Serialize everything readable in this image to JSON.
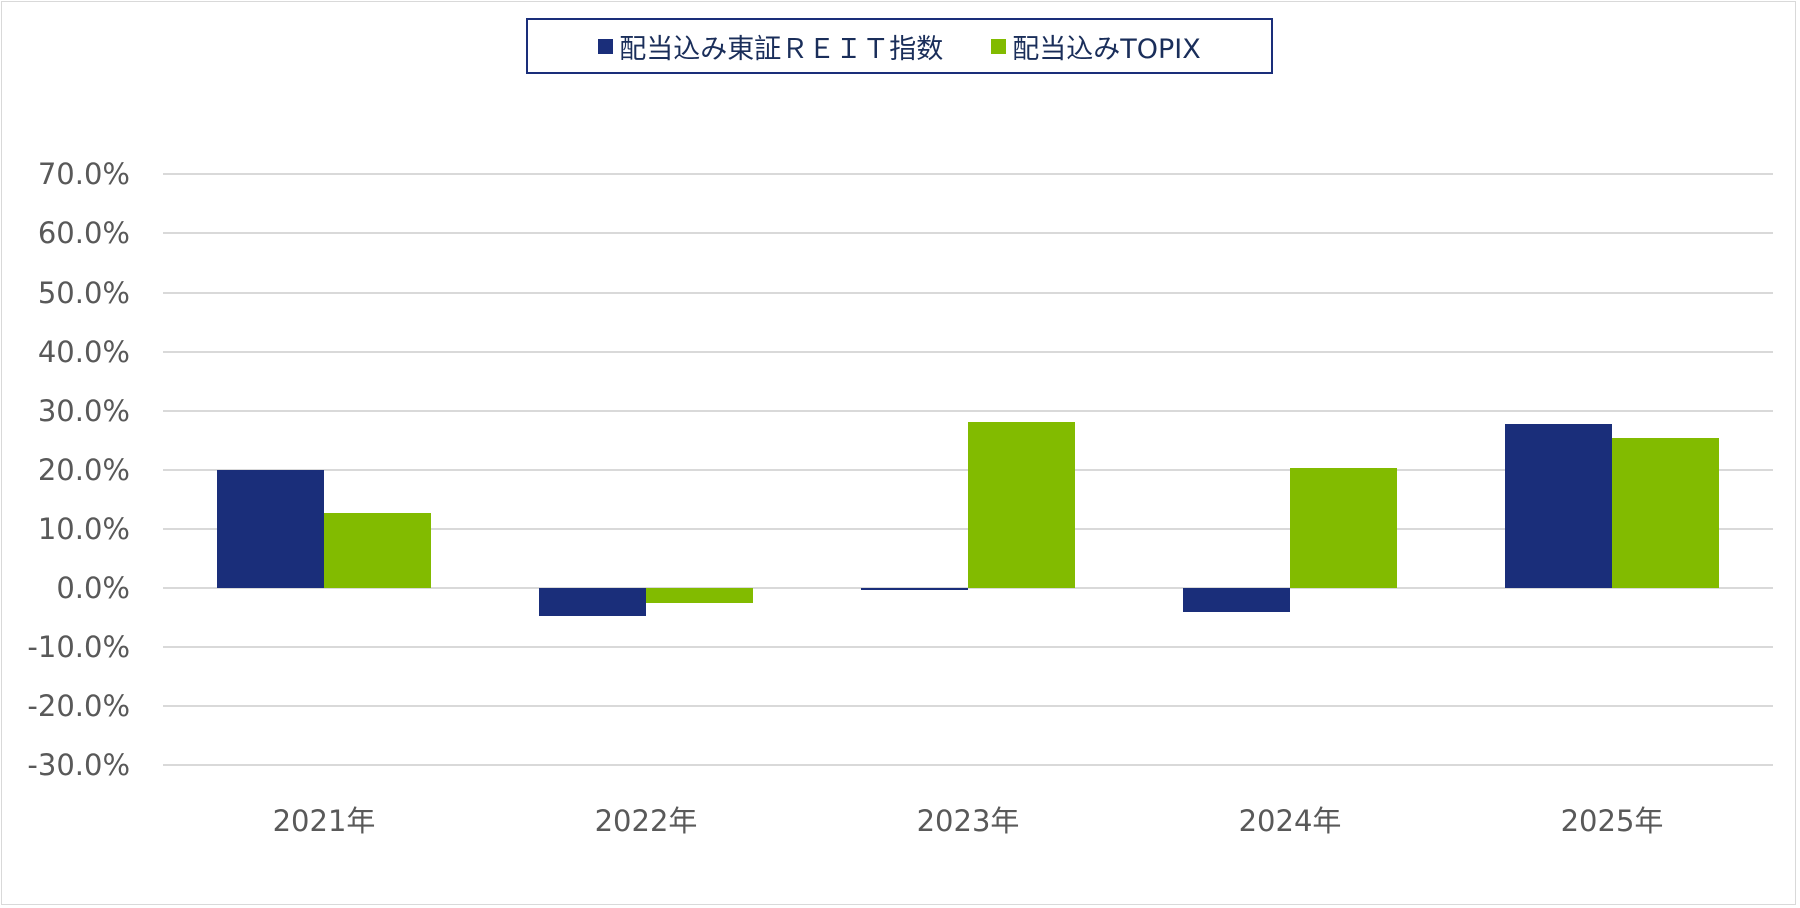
{
  "chart_data": {
    "type": "bar",
    "title": "",
    "xlabel": "",
    "ylabel": "",
    "categories": [
      "2021年",
      "2022年",
      "2023年",
      "2024年",
      "2025年"
    ],
    "series": [
      {
        "name": "配当込み東証ＲＥＩＴ指数",
        "color": "#1a2e7a",
        "values": [
          20.0,
          -4.7,
          -0.3,
          -4.1,
          27.7
        ]
      },
      {
        "name": "配当込みTOPIX",
        "color": "#82bb00",
        "values": [
          12.7,
          -2.5,
          28.1,
          20.3,
          25.4
        ]
      }
    ],
    "ylim": [
      -30,
      70
    ],
    "yticks": [
      "70.0%",
      "60.0%",
      "50.0%",
      "40.0%",
      "30.0%",
      "20.0%",
      "10.0%",
      "0.0%",
      "-10.0%",
      "-20.0%",
      "-30.0%"
    ],
    "ytick_values": [
      70,
      60,
      50,
      40,
      30,
      20,
      10,
      0,
      -10,
      -20,
      -30
    ],
    "grid": true,
    "legend_position": "top"
  },
  "legend": {
    "items": [
      {
        "label": "配当込み東証ＲＥＩＴ指数",
        "color": "#1a2e7a"
      },
      {
        "label": "配当込みTOPIX",
        "color": "#82bb00"
      }
    ]
  }
}
